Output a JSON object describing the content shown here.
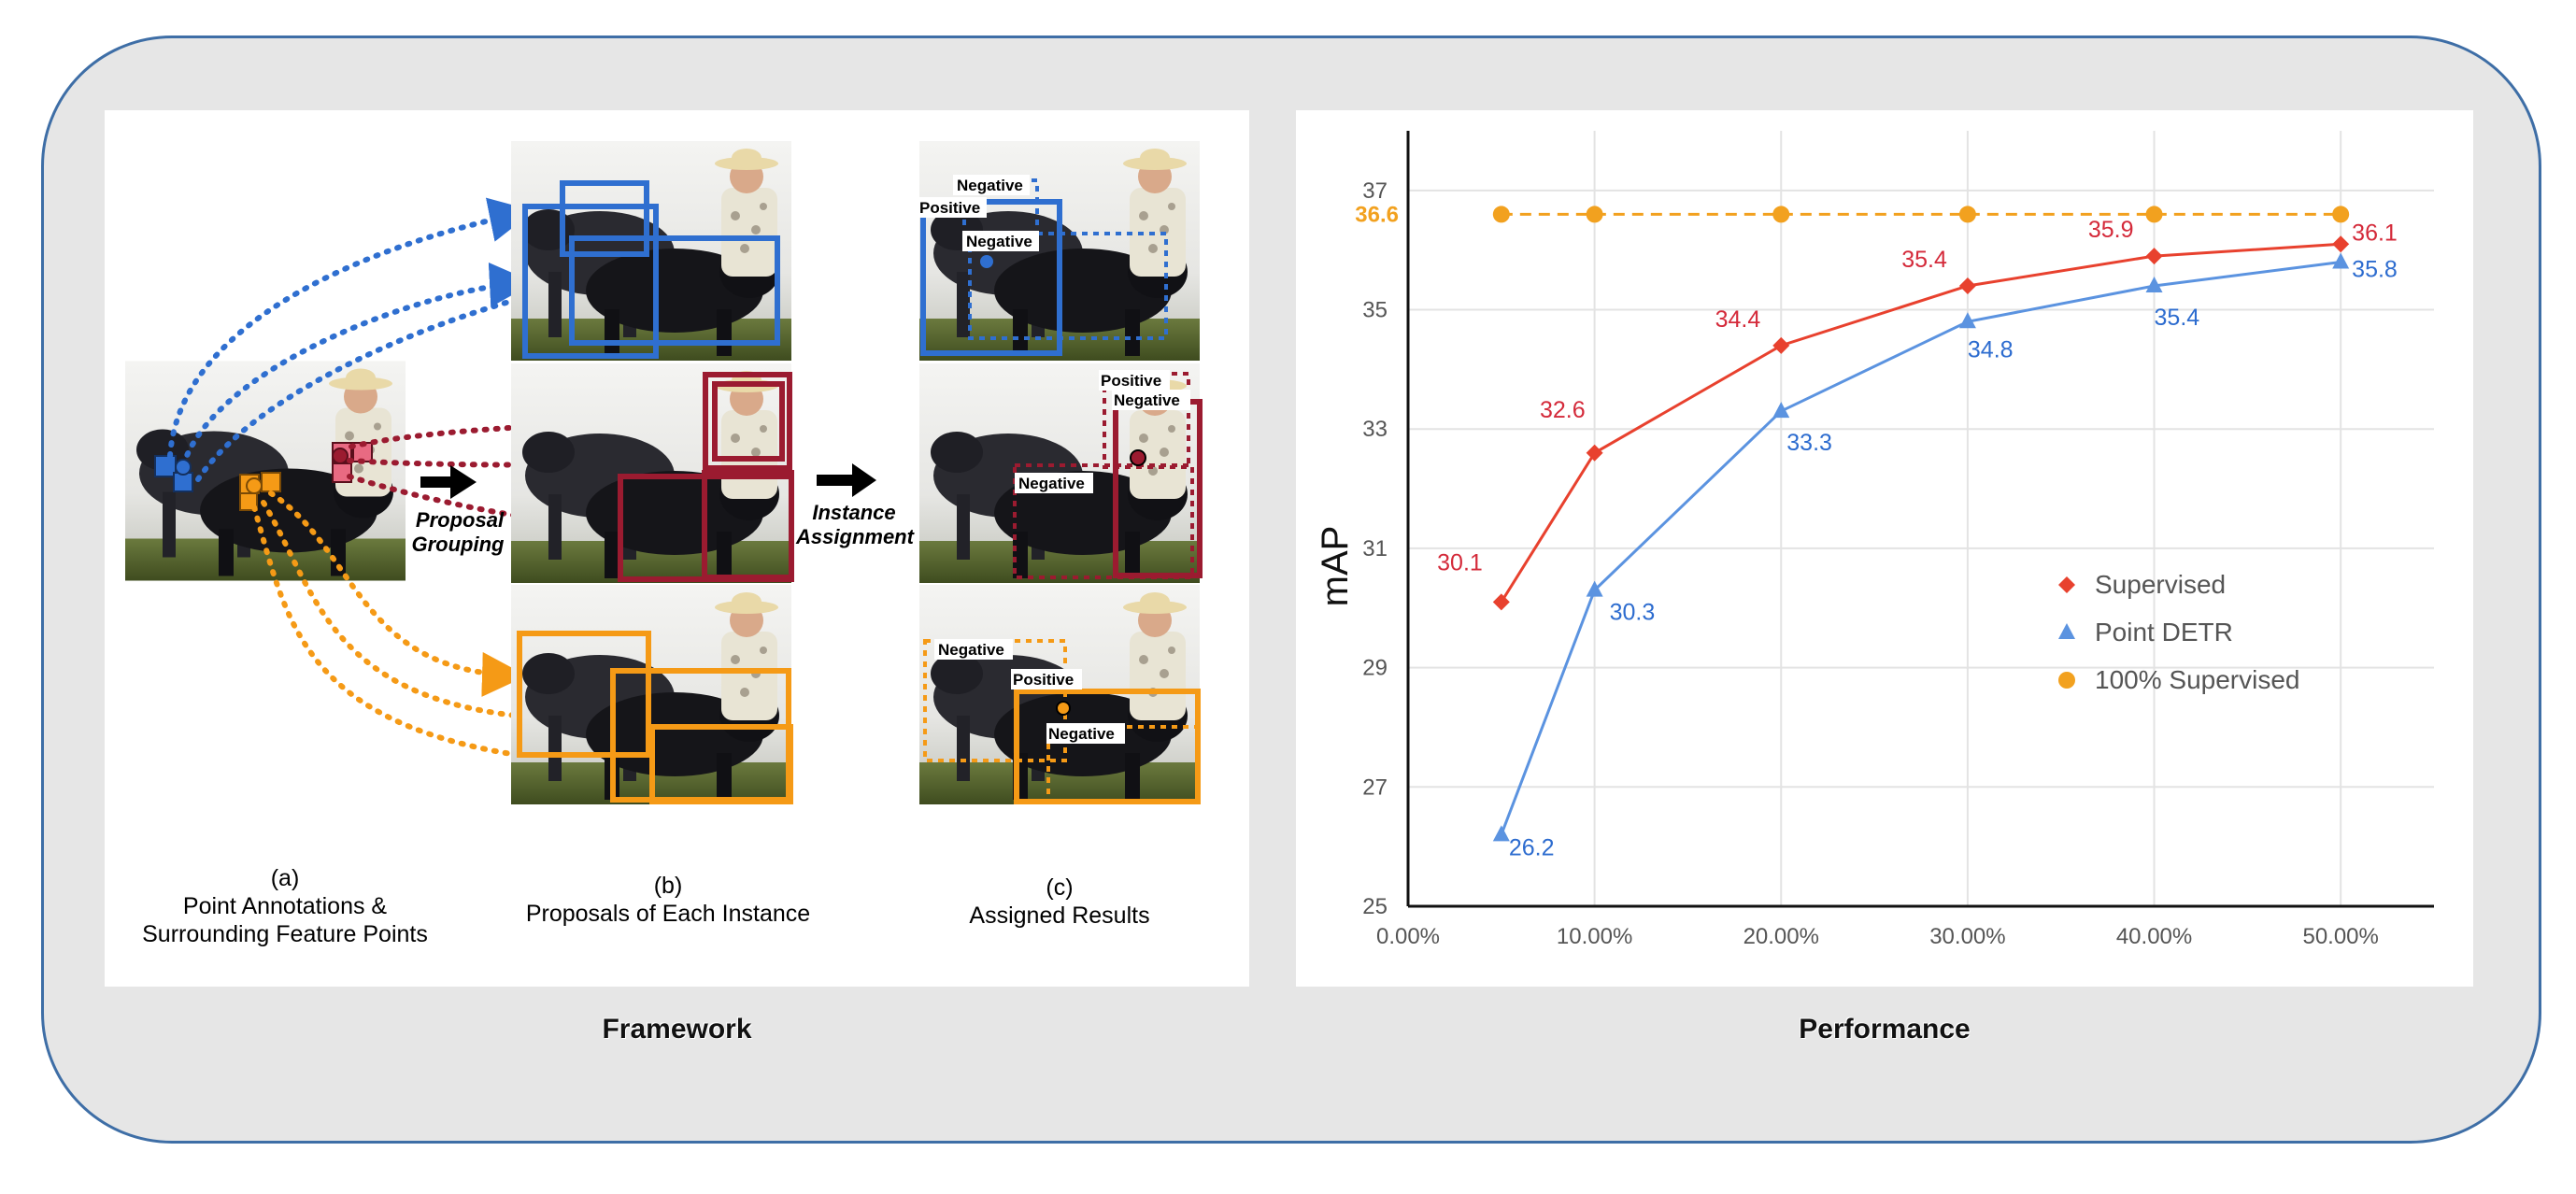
{
  "framework": {
    "section_label": "Framework",
    "step_a": {
      "letter": "(a)",
      "line1": "Point Annotations &",
      "line2": "Surrounding Feature Points"
    },
    "step_b": {
      "letter": "(b)",
      "line1": "Proposals of Each Instance"
    },
    "step_c": {
      "letter": "(c)",
      "line1": "Assigned Results"
    },
    "arrow1_label": {
      "line1": "Proposal",
      "line2": "Grouping"
    },
    "arrow2_label": {
      "line1": "Instance",
      "line2": "Assignment"
    },
    "tags": {
      "top": [
        "Negative",
        "Positive",
        "Negative"
      ],
      "middle": [
        "Positive",
        "Negative",
        "Negative"
      ],
      "bottom": [
        "Negative",
        "Positive",
        "Negative"
      ]
    },
    "colors": {
      "blue": "#2f6fd0",
      "red": "#9b1b30",
      "pink": "#e86a82",
      "orange": "#f59a16"
    }
  },
  "performance": {
    "section_label": "Performance",
    "chart_data": {
      "type": "line",
      "ylabel": "mAP",
      "xlabel": "",
      "x": [
        0.05,
        0.1,
        0.2,
        0.3,
        0.4,
        0.5
      ],
      "xlim": [
        0,
        0.55
      ],
      "xticks": [
        "0.00%",
        "10.00%",
        "20.00%",
        "30.00%",
        "40.00%",
        "50.00%"
      ],
      "ylim": [
        25,
        38
      ],
      "yticks": [
        "25",
        "27",
        "29",
        "31",
        "33",
        "35",
        "37"
      ],
      "grid": true,
      "legend_position": "center-right",
      "series": [
        {
          "name": "Supervised",
          "values": [
            30.1,
            32.6,
            34.4,
            35.4,
            35.9,
            36.1
          ],
          "labels": [
            "30.1",
            "32.6",
            "34.4",
            "35.4",
            "35.9",
            "36.1"
          ],
          "color": "#e8412e",
          "marker": "diamond"
        },
        {
          "name": "Point DETR",
          "values": [
            26.2,
            30.3,
            33.3,
            34.8,
            35.4,
            35.8
          ],
          "labels": [
            "26.2",
            "30.3",
            "33.3",
            "34.8",
            "35.4",
            "35.8"
          ],
          "color": "#5b93e0",
          "marker": "triangle"
        },
        {
          "name": "100% Supervised",
          "values": [
            36.6,
            36.6,
            36.6,
            36.6,
            36.6,
            36.6
          ],
          "labels": [
            "36.6"
          ],
          "color": "#f2a11f",
          "marker": "circle",
          "dashed": true
        }
      ]
    }
  }
}
